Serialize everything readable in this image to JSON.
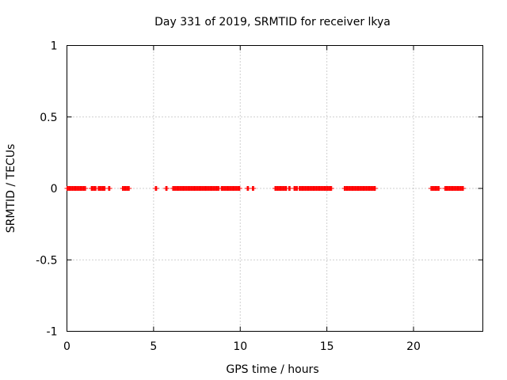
{
  "chart_data": {
    "type": "scatter",
    "title": "Day 331 of 2019, SRMTID for receiver lkya",
    "xlabel": "GPS time / hours",
    "ylabel": "SRMTID / TECUs",
    "xlim": [
      0,
      24
    ],
    "ylim": [
      -1,
      1
    ],
    "xticks": [
      0,
      5,
      10,
      15,
      20
    ],
    "xtick_labels": [
      "0",
      "5",
      "10",
      "15",
      "20"
    ],
    "yticks": [
      1,
      0.5,
      0,
      -0.5,
      -1
    ],
    "ytick_labels": [
      "1",
      "0.5",
      "0",
      "-0.5",
      "-1"
    ],
    "grid": true,
    "series": [
      {
        "name": "SRMTID",
        "color": "#ff0000",
        "marker": "plus",
        "y_value": 0,
        "x_segments": [
          [
            0.0,
            1.1
          ],
          [
            1.4,
            1.7
          ],
          [
            1.8,
            2.2
          ],
          [
            2.4,
            2.5
          ],
          [
            3.2,
            3.6
          ],
          [
            5.1,
            5.2
          ],
          [
            5.7,
            5.8
          ],
          [
            6.1,
            8.8
          ],
          [
            8.9,
            10.0
          ],
          [
            10.4,
            10.5
          ],
          [
            10.7,
            10.8
          ],
          [
            12.0,
            12.7
          ],
          [
            12.8,
            12.9
          ],
          [
            13.1,
            13.3
          ],
          [
            13.4,
            15.3
          ],
          [
            16.0,
            17.8
          ],
          [
            21.0,
            21.5
          ],
          [
            21.8,
            22.9
          ]
        ],
        "step": 0.04
      }
    ]
  }
}
